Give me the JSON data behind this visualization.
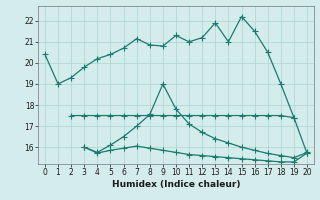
{
  "line1_x": [
    0,
    1,
    2,
    3,
    4,
    5,
    6,
    7,
    8,
    9,
    10,
    11,
    12,
    13,
    14,
    15,
    16,
    17,
    18,
    19,
    20
  ],
  "line1_y": [
    20.4,
    19.0,
    19.3,
    19.8,
    20.2,
    20.4,
    20.7,
    21.15,
    20.85,
    20.8,
    21.3,
    21.0,
    21.2,
    21.9,
    21.0,
    22.2,
    21.5,
    20.5,
    19.0,
    17.4,
    15.7
  ],
  "line2_x": [
    2,
    3,
    4,
    5,
    6,
    7,
    8,
    9,
    10,
    11,
    12,
    13,
    14,
    15,
    16,
    17,
    18,
    19
  ],
  "line2_y": [
    17.5,
    17.5,
    17.5,
    17.5,
    17.5,
    17.5,
    17.5,
    17.5,
    17.5,
    17.5,
    17.5,
    17.5,
    17.5,
    17.5,
    17.5,
    17.5,
    17.5,
    17.4
  ],
  "line3_x": [
    3,
    4,
    5,
    6,
    7,
    8,
    9,
    10,
    11,
    12,
    13,
    14,
    15,
    16,
    17,
    18,
    19,
    20
  ],
  "line3_y": [
    16.0,
    15.75,
    16.1,
    16.5,
    17.0,
    17.55,
    19.0,
    17.8,
    17.1,
    16.7,
    16.4,
    16.2,
    16.0,
    15.85,
    15.7,
    15.6,
    15.5,
    15.75
  ],
  "line4_x": [
    3,
    4,
    5,
    6,
    7,
    8,
    9,
    10,
    11,
    12,
    13,
    14,
    15,
    16,
    17,
    18,
    19,
    20
  ],
  "line4_y": [
    16.0,
    15.72,
    15.85,
    15.95,
    16.05,
    15.95,
    15.85,
    15.75,
    15.65,
    15.6,
    15.55,
    15.5,
    15.45,
    15.4,
    15.35,
    15.3,
    15.3,
    15.72
  ],
  "color": "#1a7a6e",
  "bg_color": "#d4edec",
  "grid_color": "#aed4d0",
  "xlabel": "Humidex (Indice chaleur)",
  "xlim": [
    -0.5,
    20.5
  ],
  "ylim": [
    15.2,
    22.7
  ],
  "yticks": [
    16,
    17,
    18,
    19,
    20,
    21,
    22
  ],
  "xticks": [
    0,
    1,
    2,
    3,
    4,
    5,
    6,
    7,
    8,
    9,
    10,
    11,
    12,
    13,
    14,
    15,
    16,
    17,
    18,
    19,
    20
  ]
}
